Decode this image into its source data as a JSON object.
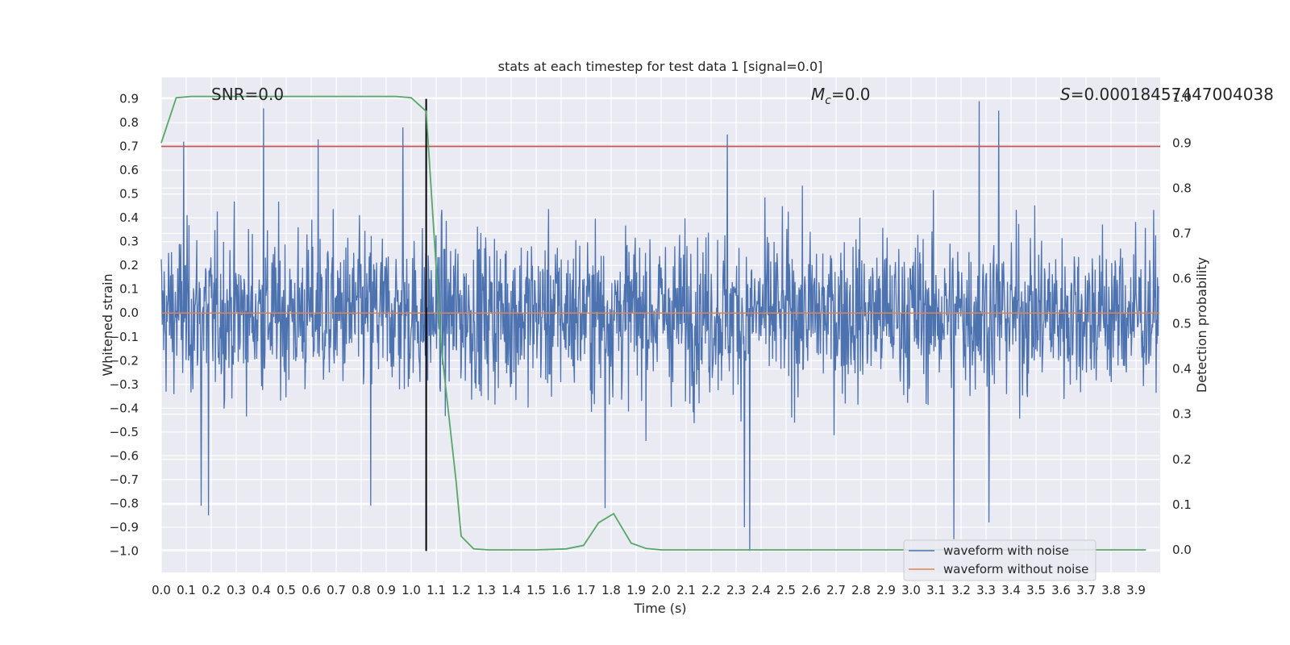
{
  "chart_data": {
    "type": "line",
    "title": "stats at each timestep for test data 1 [signal=0.0]",
    "xlabel": "Time (s)",
    "ylabel": "Whitened strain",
    "y2label": "Detection probability",
    "xlim": [
      0.0,
      4.0
    ],
    "ylim": [
      -1.09,
      0.99
    ],
    "y2lim": [
      -0.05,
      1.045
    ],
    "xticks": [
      "0.0",
      "0.1",
      "0.2",
      "0.3",
      "0.4",
      "0.5",
      "0.6",
      "0.7",
      "0.8",
      "0.9",
      "1.0",
      "1.1",
      "1.2",
      "1.3",
      "1.4",
      "1.5",
      "1.6",
      "1.7",
      "1.8",
      "1.9",
      "2.0",
      "2.1",
      "2.2",
      "2.3",
      "2.4",
      "2.5",
      "2.6",
      "2.7",
      "2.8",
      "2.9",
      "3.0",
      "3.1",
      "3.2",
      "3.3",
      "3.4",
      "3.5",
      "3.6",
      "3.7",
      "3.8",
      "3.9"
    ],
    "yticks": [
      "0.9",
      "0.8",
      "0.7",
      "0.6",
      "0.5",
      "0.4",
      "0.3",
      "0.2",
      "0.1",
      "0.0",
      "−0.1",
      "−0.2",
      "−0.3",
      "−0.4",
      "−0.5",
      "−0.6",
      "−0.7",
      "−0.8",
      "−0.9",
      "−1.0"
    ],
    "y2ticks": [
      "1.0",
      "0.9",
      "0.8",
      "0.7",
      "0.6",
      "0.5",
      "0.4",
      "0.3",
      "0.2",
      "0.1",
      "0.0"
    ],
    "annotations": {
      "snr": "SNR=0.0",
      "mc_symbol": "M",
      "mc_sub": "c",
      "mc_value": "=0.0",
      "s_symbol": "S",
      "s_value": "=0.00018457447004038"
    },
    "grid": true,
    "legend_position": "lower right",
    "series": [
      {
        "name": "waveform with noise",
        "color": "#4c72b0",
        "axis": "left",
        "noise_envelope_upper": 0.65,
        "noise_envelope_lower": -0.75,
        "sample_count": 2048,
        "peaks": [
          {
            "x": 0.09,
            "y": 0.72
          },
          {
            "x": 0.41,
            "y": 0.86
          },
          {
            "x": 0.63,
            "y": 0.73
          },
          {
            "x": 0.97,
            "y": 0.78
          },
          {
            "x": 2.27,
            "y": 0.75
          },
          {
            "x": 3.28,
            "y": 0.89
          },
          {
            "x": 3.36,
            "y": 0.85
          },
          {
            "x": 0.19,
            "y": -0.85
          },
          {
            "x": 0.16,
            "y": -0.81
          },
          {
            "x": 0.84,
            "y": -0.81
          },
          {
            "x": 2.36,
            "y": -1.0
          },
          {
            "x": 2.34,
            "y": -0.9
          },
          {
            "x": 3.18,
            "y": -0.95
          },
          {
            "x": 3.32,
            "y": -0.88
          },
          {
            "x": 1.78,
            "y": -0.82
          }
        ]
      },
      {
        "name": "waveform without noise",
        "color": "#dd8452",
        "axis": "left",
        "x": [
          0.0,
          4.0
        ],
        "y": [
          0.0,
          0.0
        ]
      },
      {
        "name": "detection probability",
        "color": "#55a868",
        "axis": "right",
        "x": [
          0.0,
          0.06,
          0.12,
          0.2,
          0.5,
          0.8,
          0.94,
          1.0,
          1.06,
          1.12,
          1.18,
          1.2,
          1.25,
          1.31,
          1.5,
          1.62,
          1.69,
          1.75,
          1.81,
          1.88,
          1.94,
          2.0,
          2.5,
          3.0,
          3.5,
          3.94
        ],
        "y": [
          0.9,
          1.0,
          1.003,
          1.003,
          1.003,
          1.003,
          1.003,
          1.0,
          0.97,
          0.45,
          0.15,
          0.03,
          0.002,
          0.0,
          0.0,
          0.002,
          0.01,
          0.06,
          0.08,
          0.015,
          0.003,
          0.0,
          0.0,
          0.0,
          0.0,
          0.0
        ]
      }
    ],
    "reference_lines": [
      {
        "kind": "horizontal",
        "axis": "left",
        "y": 0.7,
        "color": "#c44e52"
      },
      {
        "kind": "vertical",
        "x": 1.06,
        "y_range": [
          -1.0,
          0.9
        ],
        "color": "#000000"
      }
    ]
  }
}
